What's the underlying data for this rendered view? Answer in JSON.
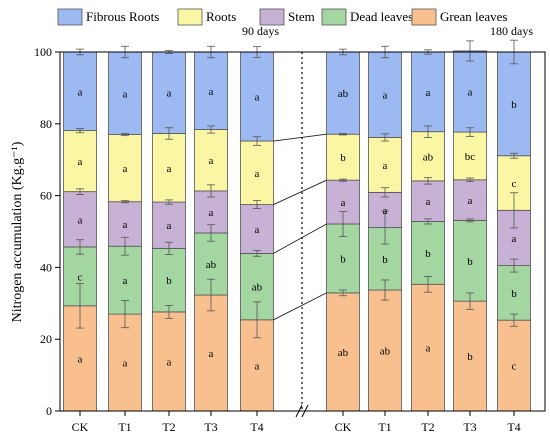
{
  "chart_data": {
    "type": "bar",
    "stacked": true,
    "ylabel": "Nitrogen accumulation (Kg.g⁻¹)",
    "ylim": [
      0,
      100
    ],
    "yticks": [
      0,
      20,
      40,
      60,
      80,
      100
    ],
    "grid": false,
    "legend_position": "top",
    "legend": [
      "Fibrous Roots",
      "Roots",
      "Stem",
      "Dead leaves",
      "Grean leaves"
    ],
    "groups": [
      {
        "label": "90 days",
        "categories": [
          "CK",
          "T1",
          "T2",
          "T3",
          "T4"
        ],
        "series": [
          {
            "name": "Grean leaves",
            "color": "#F9C08F",
            "values": [
              29.3,
              27.0,
              27.6,
              32.3,
              25.4
            ],
            "errors": [
              6.2,
              3.8,
              1.8,
              4.4,
              5.0
            ],
            "letters": [
              "a",
              "a",
              "a",
              "a",
              "a"
            ]
          },
          {
            "name": "Dead leaves",
            "color": "#A3D6A1",
            "values": [
              16.4,
              18.9,
              17.7,
              17.3,
              18.5
            ],
            "errors": [
              2.0,
              2.5,
              1.7,
              2.3,
              0.8
            ],
            "letters": [
              "c",
              "a",
              "b",
              "ab",
              "ab"
            ]
          },
          {
            "name": "Stem",
            "color": "#C7B2D6",
            "values": [
              15.4,
              12.4,
              12.9,
              11.7,
              13.6
            ],
            "errors": [
              0.8,
              0.3,
              0.6,
              1.7,
              1.1
            ],
            "letters": [
              "a",
              "a",
              "a",
              "a",
              "a"
            ]
          },
          {
            "name": "Roots",
            "color": "#FBF6A3",
            "values": [
              17.0,
              18.7,
              19.1,
              17.1,
              17.7
            ],
            "errors": [
              0.6,
              0.3,
              1.6,
              1.0,
              1.2
            ],
            "letters": [
              "a",
              "a",
              "a",
              "a",
              "a"
            ]
          },
          {
            "name": "Fibrous Roots",
            "color": "#9DB9F1",
            "values": [
              21.9,
              23.0,
              22.7,
              21.6,
              24.8
            ],
            "errors": [
              0.8,
              1.6,
              0.4,
              1.6,
              1.5
            ],
            "letters": [
              "a",
              "a",
              "a",
              "a",
              "a"
            ]
          }
        ]
      },
      {
        "label": "180 days",
        "categories": [
          "CK",
          "T1",
          "T2",
          "T3",
          "T4"
        ],
        "series": [
          {
            "name": "Grean leaves",
            "color": "#F9C08F",
            "values": [
              32.9,
              33.7,
              35.3,
              30.6,
              25.3
            ],
            "errors": [
              0.8,
              2.8,
              2.2,
              2.3,
              1.7
            ],
            "letters": [
              "ab",
              "ab",
              "a",
              "b",
              "c"
            ]
          },
          {
            "name": "Dead leaves",
            "color": "#A3D6A1",
            "values": [
              19.2,
              17.4,
              17.5,
              22.5,
              15.2
            ],
            "errors": [
              3.5,
              4.6,
              0.7,
              0.4,
              1.8
            ],
            "letters": [
              "b",
              "b",
              "b",
              "b",
              "b"
            ]
          },
          {
            "name": "Stem",
            "color": "#C7B2D6",
            "values": [
              12.2,
              9.8,
              11.3,
              11.3,
              15.4
            ],
            "errors": [
              0.3,
              1.3,
              0.9,
              0.5,
              4.9
            ],
            "letters": [
              "a",
              "a",
              "a",
              "a",
              "a"
            ]
          },
          {
            "name": "Roots",
            "color": "#FBF6A3",
            "values": [
              12.8,
              15.3,
              13.7,
              13.3,
              15.2
            ],
            "errors": [
              0.2,
              1.0,
              1.6,
              1.2,
              0.7
            ],
            "letters": [
              "b",
              "a",
              "ab",
              "bc",
              "c"
            ]
          },
          {
            "name": "Fibrous Roots",
            "color": "#9DB9F1",
            "values": [
              22.9,
              23.8,
              22.2,
              22.6,
              28.9
            ],
            "errors": [
              0.8,
              1.6,
              0.6,
              2.8,
              3.3
            ],
            "letters": [
              "ab",
              "a",
              "a",
              "a",
              "b"
            ]
          }
        ]
      }
    ]
  }
}
